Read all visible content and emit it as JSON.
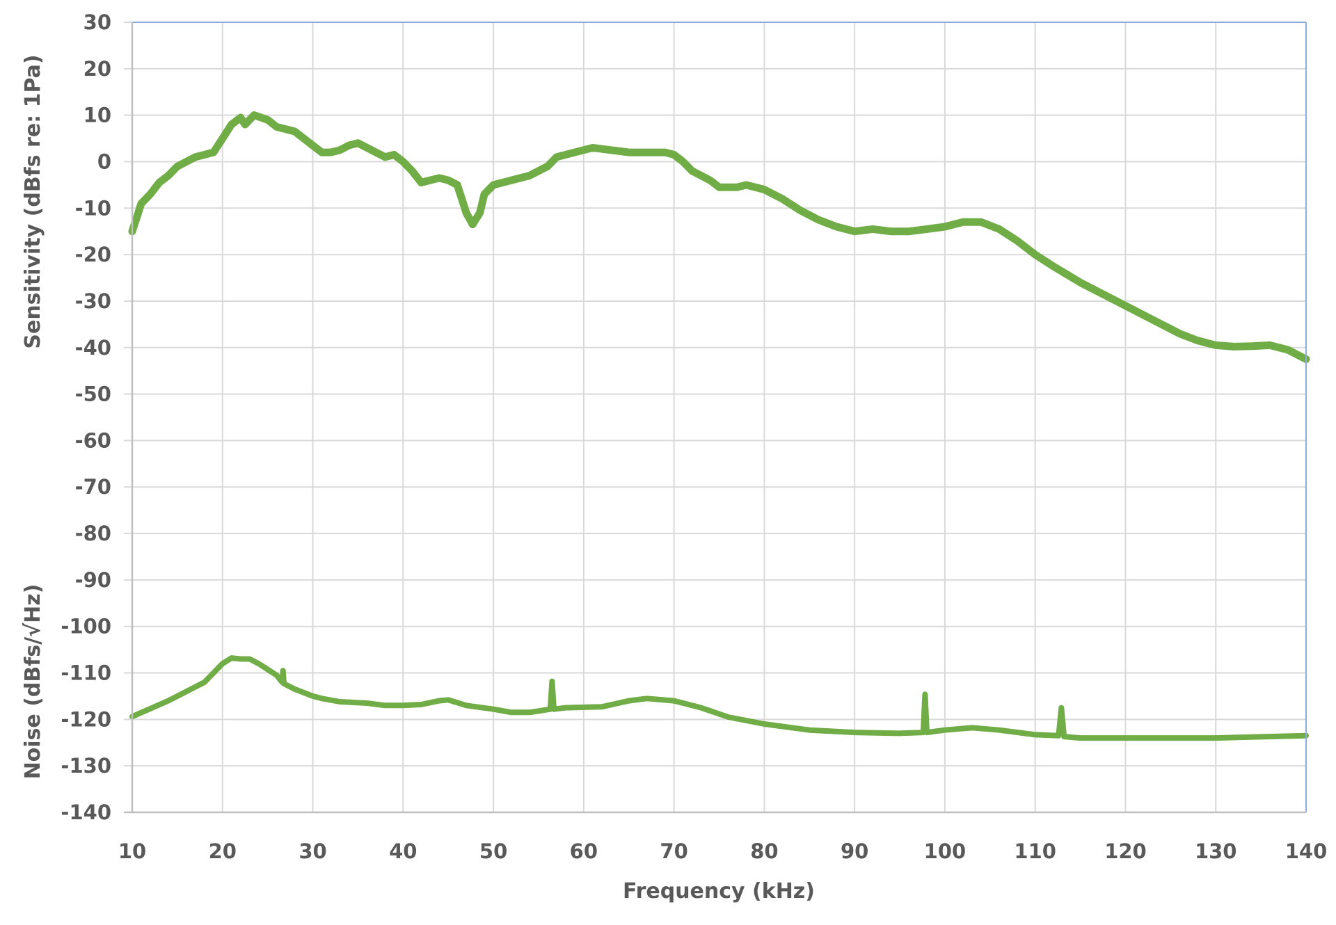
{
  "chart_data": {
    "type": "line",
    "title": "",
    "xlabel": "Frequency (kHz)",
    "ylabel": "Sensitivity (dBfs re: 1Pa)",
    "ylabel_secondary": "Noise (dBfs/√Hz)",
    "xlim": [
      10,
      140
    ],
    "ylim": [
      -140,
      30
    ],
    "x_ticks": [
      10,
      20,
      30,
      40,
      50,
      60,
      70,
      80,
      90,
      100,
      110,
      120,
      130,
      140
    ],
    "y_ticks": [
      30,
      20,
      10,
      0,
      -10,
      -20,
      -30,
      -40,
      -50,
      -60,
      -70,
      -80,
      -90,
      -100,
      -110,
      -120,
      -130,
      -140
    ],
    "grid": true,
    "legend": null,
    "line_color": "#70AD47",
    "series": [
      {
        "name": "Sensitivity",
        "x": [
          10,
          10.5,
          11,
          12,
          13,
          14,
          15,
          16,
          17,
          18,
          19,
          20,
          21,
          22,
          22.5,
          23.5,
          25,
          26,
          28,
          29,
          30,
          31,
          32,
          33,
          34,
          35,
          36,
          37,
          38,
          39,
          40,
          41,
          42,
          43,
          44,
          45,
          46,
          47,
          47.7,
          48.5,
          49,
          50,
          52,
          54,
          55,
          56,
          57,
          59,
          61,
          63,
          65,
          67,
          69,
          70,
          71,
          72,
          74,
          75,
          77,
          78,
          80,
          82,
          84,
          86,
          88,
          90,
          92,
          94,
          96,
          98,
          100,
          102,
          104,
          106,
          108,
          110,
          112,
          115,
          118,
          120,
          122,
          124,
          126,
          128,
          130,
          132,
          134,
          136,
          138,
          140
        ],
        "values": [
          -15,
          -12,
          -9,
          -7,
          -4.5,
          -3,
          -1,
          0,
          1,
          1.5,
          2,
          5,
          8,
          9.5,
          8,
          10,
          9,
          7.5,
          6.5,
          5,
          3.5,
          2,
          2,
          2.5,
          3.5,
          4,
          3,
          2,
          1,
          1.5,
          0,
          -2,
          -4.5,
          -4,
          -3.5,
          -4,
          -5,
          -11,
          -13.5,
          -11,
          -7,
          -5,
          -4,
          -3,
          -2,
          -1,
          1,
          2,
          3,
          2.5,
          2,
          2,
          2,
          1.5,
          0,
          -2,
          -4,
          -5.5,
          -5.5,
          -5,
          -6,
          -8,
          -10.5,
          -12.5,
          -14,
          -15,
          -14.5,
          -15,
          -15,
          -14.5,
          -14,
          -13,
          -13,
          -14.5,
          -17,
          -20,
          -22.5,
          -26,
          -29,
          -31,
          -33,
          -35,
          -37,
          -38.5,
          -39.5,
          -39.8,
          -39.7,
          -39.5,
          -40.5,
          -42.5
        ]
      },
      {
        "name": "Noise",
        "x": [
          10,
          14,
          18,
          20,
          21,
          22,
          23,
          24,
          26,
          26.6,
          26.7,
          26.8,
          28,
          30,
          31,
          33,
          36,
          38,
          40,
          42,
          44,
          45,
          47,
          50,
          52,
          54,
          56.3,
          56.5,
          56.7,
          58,
          62,
          65,
          67,
          70,
          73,
          76,
          80,
          85,
          90,
          95,
          97.6,
          97.8,
          98.0,
          100,
          103,
          106,
          110,
          112.6,
          112.9,
          113.2,
          115,
          120,
          130,
          140
        ],
        "values": [
          -119.4,
          -116,
          -112,
          -108,
          -106.8,
          -107,
          -107,
          -108,
          -110.5,
          -112,
          -109.5,
          -112.3,
          -113.5,
          -115,
          -115.5,
          -116.2,
          -116.5,
          -117,
          -117,
          -116.8,
          -116,
          -115.8,
          -117,
          -117.8,
          -118.5,
          -118.5,
          -117.8,
          -111.8,
          -117.8,
          -117.5,
          -117.3,
          -116,
          -115.5,
          -116,
          -117.5,
          -119.5,
          -121,
          -122.3,
          -122.8,
          -123,
          -122.8,
          -114.6,
          -122.8,
          -122.3,
          -121.8,
          -122.3,
          -123.3,
          -123.5,
          -117.5,
          -123.7,
          -124,
          -124,
          -124,
          -123.5
        ]
      }
    ]
  }
}
